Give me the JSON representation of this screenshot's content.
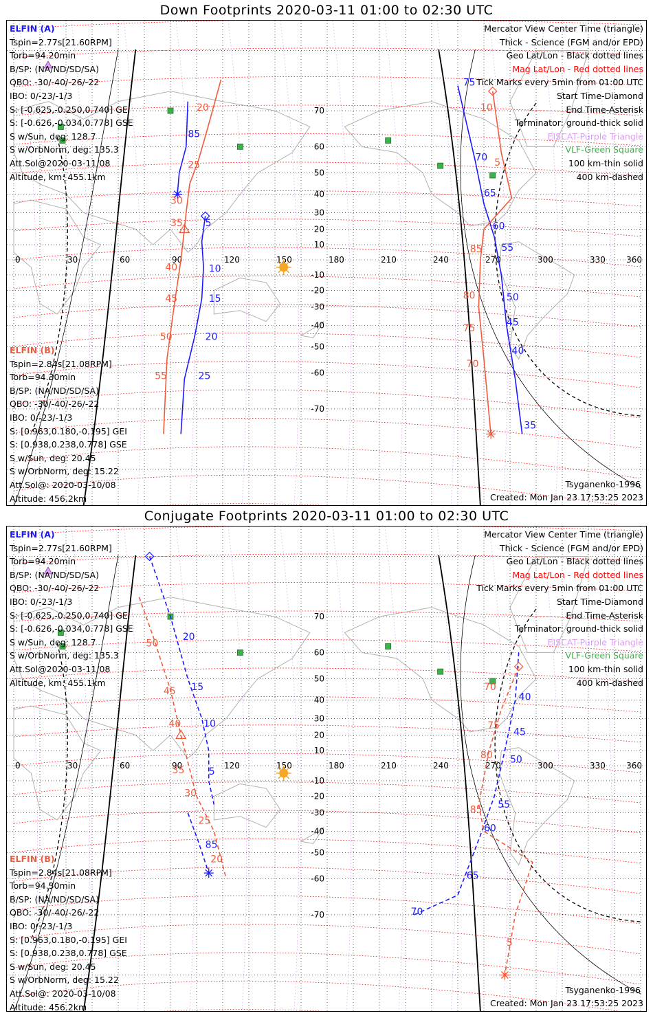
{
  "colors": {
    "elfin_a": "#1a1aff",
    "elfin_b": "#f05a3c",
    "mag_grid": "#ff0000",
    "geo_grid": "#000000",
    "eiscat": "#d9a0f0",
    "vlf": "#3cb34a",
    "sun": "#f5a623",
    "coast": "#b0b0b0"
  },
  "panels": [
    {
      "title": "Down Footprints 2020-03-11 01:00 to 02:30 UTC",
      "elfin_a_header": "ELFIN (A)",
      "elfin_a_lines": [
        "Tspin=2.77s[21.60RPM]",
        "Torb=94.20min",
        "B/SP: (NA/ND/SD/SA)",
        "QBO: -30/-40/-26/-22",
        "IBO: 0/-23/-1/3",
        "S: [-0.625,-0.250,0.740] GEI",
        "S: [-0.626,-0.034,0.778] GSE",
        "S w/Sun, deg: 128.7",
        "S w/OrbNorm, deg: 135.3",
        "Att.Sol@2020-03-11/08",
        "Altitude, km: 455.1km"
      ],
      "elfin_b_header": "ELFIN (B)",
      "elfin_b_lines": [
        "Tspin=2.84s[21.08RPM]",
        "Torb=94.30min",
        "B/SP: (NA/ND/SD/SA)",
        "QBO: -30/-40/-26/-22",
        "IBO: 0/-23/-1/3",
        "S: [0.963,0.180,-0.195] GEI",
        "S: [0.938,0.238,0.778] GSE",
        "S w/Sun, deg: 20.45",
        "S w/OrbNorm, deg: 15.22",
        "Att.Sol@: 2020-03-10/08",
        "Altitude: 456.2km"
      ],
      "legend": [
        {
          "text": "Mercator View Center Time (triangle)",
          "style": "blk"
        },
        {
          "text": "Thick - Science (FGM and/or EPD)",
          "style": "blk"
        },
        {
          "text": "Geo Lat/Lon - Black dotted lines",
          "style": "blk"
        },
        {
          "text": "Mag Lat/Lon - Red dotted lines",
          "style": "red"
        },
        {
          "text": "Tick Marks every 5min from 01:00 UTC",
          "style": "blk"
        },
        {
          "text": "Start Time-Diamond",
          "style": "blk"
        },
        {
          "text": "End Time-Asterisk",
          "style": "blk"
        },
        {
          "text": "Terminator: ground-thick solid",
          "style": "blk"
        },
        {
          "text": "EISCAT-Purple Triangle",
          "style": "purple"
        },
        {
          "text": "VLF-Green Square",
          "style": "green"
        },
        {
          "text": "100 km-thin solid",
          "style": "blk"
        },
        {
          "text": "400 km-dashed",
          "style": "blk"
        }
      ],
      "model": "Tsyganenko-1996",
      "created": "Created: Mon Jan 23 17:53:25 2023"
    },
    {
      "title": "Conjugate Footprints 2020-03-11 01:00 to 02:30 UTC",
      "elfin_a_header": "ELFIN (A)",
      "elfin_a_lines": [
        "Tspin=2.77s[21.60RPM]",
        "Torb=94.20min",
        "B/SP: (NA/ND/SD/SA)",
        "QBO: -30/-40/-26/-22",
        "IBO: 0/-23/-1/3",
        "S: [-0.625,-0.250,0.740] GEI",
        "S: [-0.626,-0.034,0.778] GSE",
        "S w/Sun, deg: 128.7",
        "S w/OrbNorm, deg: 135.3",
        "Att.Sol@2020-03-11/08",
        "Altitude, km: 455.1km"
      ],
      "elfin_b_header": "ELFIN (B)",
      "elfin_b_lines": [
        "Tspin=2.84s[21.08RPM]",
        "Torb=94.30min",
        "B/SP: (NA/ND/SD/SA)",
        "QBO: -30/-40/-26/-22",
        "IBO: 0/-23/-1/3",
        "S: [0.963,0.180,-0.195] GEI",
        "S: [0.938,0.238,0.778] GSE",
        "S w/Sun, deg: 20.45",
        "S w/OrbNorm, deg: 15.22",
        "Att.Sol@: 2020-03-10/08",
        "Altitude: 456.2km"
      ],
      "legend": [
        {
          "text": "Mercator View Center Time (triangle)",
          "style": "blk"
        },
        {
          "text": "Thick - Science (FGM and/or EPD)",
          "style": "blk"
        },
        {
          "text": "Geo Lat/Lon - Black dotted lines",
          "style": "blk"
        },
        {
          "text": "Mag Lat/Lon - Red dotted lines",
          "style": "red"
        },
        {
          "text": "Tick Marks every 5min from 01:00 UTC",
          "style": "blk"
        },
        {
          "text": "Start Time-Diamond",
          "style": "blk"
        },
        {
          "text": "End Time-Asterisk",
          "style": "blk"
        },
        {
          "text": "Terminator: ground-thick solid",
          "style": "blk"
        },
        {
          "text": "EISCAT-Purple Triangle",
          "style": "purple"
        },
        {
          "text": "VLF-Green Square",
          "style": "green"
        },
        {
          "text": "100 km-thin solid",
          "style": "blk"
        },
        {
          "text": "400 km-dashed",
          "style": "blk"
        }
      ],
      "model": "Tsyganenko-1996",
      "created": "Created: Mon Jan 23 17:53:25 2023"
    }
  ],
  "chart_data": [
    {
      "type": "map",
      "title": "Down Footprints 2020-03-11 01:00 to 02:30 UTC",
      "lon_ticks": [
        "0",
        "30",
        "60",
        "90",
        "120",
        "150",
        "180",
        "210",
        "240",
        "270",
        "300",
        "330",
        "360"
      ],
      "lat_ticks": [
        "70",
        "60",
        "50",
        "40",
        "30",
        "20",
        "10",
        "-10",
        "-20",
        "-30",
        "-40",
        "-50",
        "-60",
        "-70"
      ],
      "sun": {
        "lon": 155,
        "lat": -5
      },
      "vlf_stations": [
        [
          90,
          70
        ],
        [
          27,
          66
        ],
        [
          28,
          62
        ],
        [
          130,
          60
        ],
        [
          215,
          62
        ],
        [
          245,
          53
        ],
        [
          275,
          49
        ]
      ],
      "tracks": [
        {
          "satellite": "ELFIN (A)",
          "color": "elfin_a",
          "style": "solid",
          "marker_start": "diamond",
          "points": [
            [
              110,
              28
            ],
            [
              108,
              12
            ],
            [
              109,
              -5
            ],
            [
              108,
              -25
            ],
            [
              104,
              -45
            ],
            [
              98,
              -62
            ],
            [
              96,
              -75
            ]
          ],
          "labels": [
            {
              "text": "5",
              "lon": 110,
              "lat": 22
            },
            {
              "text": "10",
              "lon": 112,
              "lat": -8
            },
            {
              "text": "15",
              "lon": 112,
              "lat": -27
            },
            {
              "text": "20",
              "lon": 110,
              "lat": -47
            },
            {
              "text": "25",
              "lon": 106,
              "lat": -62
            }
          ]
        },
        {
          "satellite": "ELFIN (A)",
          "color": "elfin_a",
          "style": "solid",
          "marker_end": "asterisk",
          "points": [
            [
              100,
              72
            ],
            [
              99,
              60
            ],
            [
              95,
              50
            ],
            [
              94,
              40
            ]
          ],
          "labels": [
            {
              "text": "85",
              "lon": 100,
              "lat": 63
            }
          ]
        },
        {
          "satellite": "ELFIN (B)",
          "color": "elfin_b",
          "style": "solid",
          "marker_center": "triangle",
          "points": [
            [
              119,
              76
            ],
            [
              111,
              65
            ],
            [
              106,
              55
            ],
            [
              101,
              45
            ],
            [
              99,
              30
            ],
            [
              98,
              20
            ],
            [
              96,
              0
            ],
            [
              92,
              -30
            ],
            [
              88,
              -55
            ],
            [
              86,
              -75
            ]
          ],
          "labels": [
            {
              "text": "20",
              "lon": 105,
              "lat": 70
            },
            {
              "text": "25",
              "lon": 100,
              "lat": 52
            },
            {
              "text": "30",
              "lon": 90,
              "lat": 35
            },
            {
              "text": "35",
              "lon": 90,
              "lat": 22
            },
            {
              "text": "40",
              "lon": 87,
              "lat": -7
            },
            {
              "text": "45",
              "lon": 87,
              "lat": -27
            },
            {
              "text": "50",
              "lon": 84,
              "lat": -47
            },
            {
              "text": "55",
              "lon": 81,
              "lat": -62
            }
          ]
        },
        {
          "satellite": "ELFIN (A)",
          "color": "elfin_a",
          "style": "solid",
          "points": [
            [
              255,
              75
            ],
            [
              265,
              55
            ],
            [
              270,
              35
            ],
            [
              276,
              15
            ],
            [
              280,
              -10
            ],
            [
              283,
              -40
            ],
            [
              288,
              -62
            ],
            [
              292,
              -75
            ]
          ],
          "labels": [
            {
              "text": "75",
              "lon": 258,
              "lat": 75
            },
            {
              "text": "70",
              "lon": 265,
              "lat": 55
            },
            {
              "text": "65",
              "lon": 270,
              "lat": 39
            },
            {
              "text": "60",
              "lon": 275,
              "lat": 20
            },
            {
              "text": "55",
              "lon": 280,
              "lat": 6
            },
            {
              "text": "50",
              "lon": 283,
              "lat": -26
            },
            {
              "text": "45",
              "lon": 283,
              "lat": -40
            },
            {
              "text": "40",
              "lon": 286,
              "lat": -53
            },
            {
              "text": "35",
              "lon": 293,
              "lat": -74
            }
          ]
        },
        {
          "satellite": "ELFIN (B)",
          "color": "elfin_b",
          "style": "solid",
          "marker_start": "diamond",
          "marker_end": "asterisk",
          "points": [
            [
              275,
              74
            ],
            [
              280,
              58
            ],
            [
              286,
              38
            ],
            [
              270,
              20
            ],
            [
              268,
              0
            ],
            [
              267,
              -30
            ],
            [
              270,
              -55
            ],
            [
              274,
              -75
            ]
          ],
          "labels": [
            {
              "text": "10",
              "lon": 268,
              "lat": 70
            },
            {
              "text": "5",
              "lon": 276,
              "lat": 53
            },
            {
              "text": "85",
              "lon": 262,
              "lat": 5
            },
            {
              "text": "80",
              "lon": 258,
              "lat": -25
            },
            {
              "text": "75",
              "lon": 258,
              "lat": -43
            },
            {
              "text": "70",
              "lon": 260,
              "lat": -58
            }
          ]
        }
      ]
    },
    {
      "type": "map",
      "title": "Conjugate Footprints 2020-03-11 01:00 to 02:30 UTC",
      "lon_ticks": [
        "0",
        "30",
        "60",
        "90",
        "120",
        "150",
        "180",
        "210",
        "240",
        "270",
        "300",
        "330",
        "360"
      ],
      "lat_ticks": [
        "70",
        "60",
        "50",
        "40",
        "30",
        "20",
        "10",
        "-10",
        "-20",
        "-30",
        "-40",
        "-50",
        "-60",
        "-70"
      ],
      "sun": {
        "lon": 155,
        "lat": -5
      },
      "vlf_stations": [
        [
          90,
          70
        ],
        [
          27,
          66
        ],
        [
          28,
          62
        ],
        [
          130,
          60
        ],
        [
          215,
          62
        ],
        [
          245,
          53
        ],
        [
          275,
          49
        ]
      ],
      "tracks": [
        {
          "satellite": "ELFIN (A)",
          "color": "elfin_a",
          "style": "dashed",
          "marker_start": "diamond",
          "points": [
            [
              78,
              80
            ],
            [
              90,
              70
            ],
            [
              100,
              50
            ],
            [
              108,
              30
            ],
            [
              112,
              10
            ],
            [
              112,
              -10
            ],
            [
              115,
              -25
            ]
          ],
          "labels": [
            {
              "text": "20",
              "lon": 97,
              "lat": 64
            },
            {
              "text": "15",
              "lon": 102,
              "lat": 45
            },
            {
              "text": "10",
              "lon": 109,
              "lat": 25
            },
            {
              "text": "5",
              "lon": 112,
              "lat": -6
            }
          ]
        },
        {
          "satellite": "ELFIN (A)",
          "color": "elfin_a",
          "style": "dashed",
          "marker_end": "asterisk",
          "points": [
            [
              100,
              -30
            ],
            [
              106,
              -45
            ],
            [
              112,
              -58
            ]
          ],
          "labels": [
            {
              "text": "85",
              "lon": 110,
              "lat": -48
            }
          ]
        },
        {
          "satellite": "ELFIN (B)",
          "color": "elfin_b",
          "style": "dashed",
          "marker_center": "triangle",
          "points": [
            [
              72,
              74
            ],
            [
              80,
              65
            ],
            [
              90,
              45
            ],
            [
              96,
              20
            ],
            [
              105,
              -20
            ],
            [
              115,
              -40
            ],
            [
              122,
              -60
            ]
          ],
          "labels": [
            {
              "text": "50",
              "lon": 76,
              "lat": 62
            },
            {
              "text": "45",
              "lon": 86,
              "lat": 43
            },
            {
              "text": "40",
              "lon": 89,
              "lat": 25
            },
            {
              "text": "35",
              "lon": 91,
              "lat": -5
            },
            {
              "text": "30",
              "lon": 98,
              "lat": -20
            },
            {
              "text": "25",
              "lon": 106,
              "lat": -36
            },
            {
              "text": "20",
              "lon": 113,
              "lat": -54
            }
          ]
        },
        {
          "satellite": "ELFIN (A)",
          "color": "elfin_a",
          "style": "dashed",
          "points": [
            [
              230,
              -70
            ],
            [
              255,
              -65
            ],
            [
              268,
              -42
            ],
            [
              276,
              -20
            ],
            [
              282,
              10
            ],
            [
              288,
              40
            ],
            [
              290,
              60
            ]
          ],
          "labels": [
            {
              "text": "70",
              "lon": 228,
              "lat": -70
            },
            {
              "text": "65",
              "lon": 260,
              "lat": -60
            },
            {
              "text": "60",
              "lon": 270,
              "lat": -40
            },
            {
              "text": "55",
              "lon": 278,
              "lat": -27
            },
            {
              "text": "50",
              "lon": 285,
              "lat": 2
            },
            {
              "text": "45",
              "lon": 287,
              "lat": 20
            },
            {
              "text": "40",
              "lon": 290,
              "lat": 40
            }
          ]
        },
        {
          "satellite": "ELFIN (B)",
          "color": "elfin_b",
          "style": "dashed",
          "marker_start": "diamond",
          "marker_end": "asterisk",
          "points": [
            [
              290,
              55
            ],
            [
              280,
              35
            ],
            [
              273,
              10
            ],
            [
              267,
              -25
            ],
            [
              270,
              -40
            ],
            [
              298,
              -54
            ],
            [
              288,
              -70
            ],
            [
              282,
              -82
            ]
          ],
          "labels": [
            {
              "text": "70",
              "lon": 270,
              "lat": 45
            },
            {
              "text": "75",
              "lon": 272,
              "lat": 24
            },
            {
              "text": "80",
              "lon": 268,
              "lat": 5
            },
            {
              "text": "85",
              "lon": 262,
              "lat": -30
            },
            {
              "text": "5",
              "lon": 283,
              "lat": -76
            }
          ]
        }
      ]
    }
  ]
}
